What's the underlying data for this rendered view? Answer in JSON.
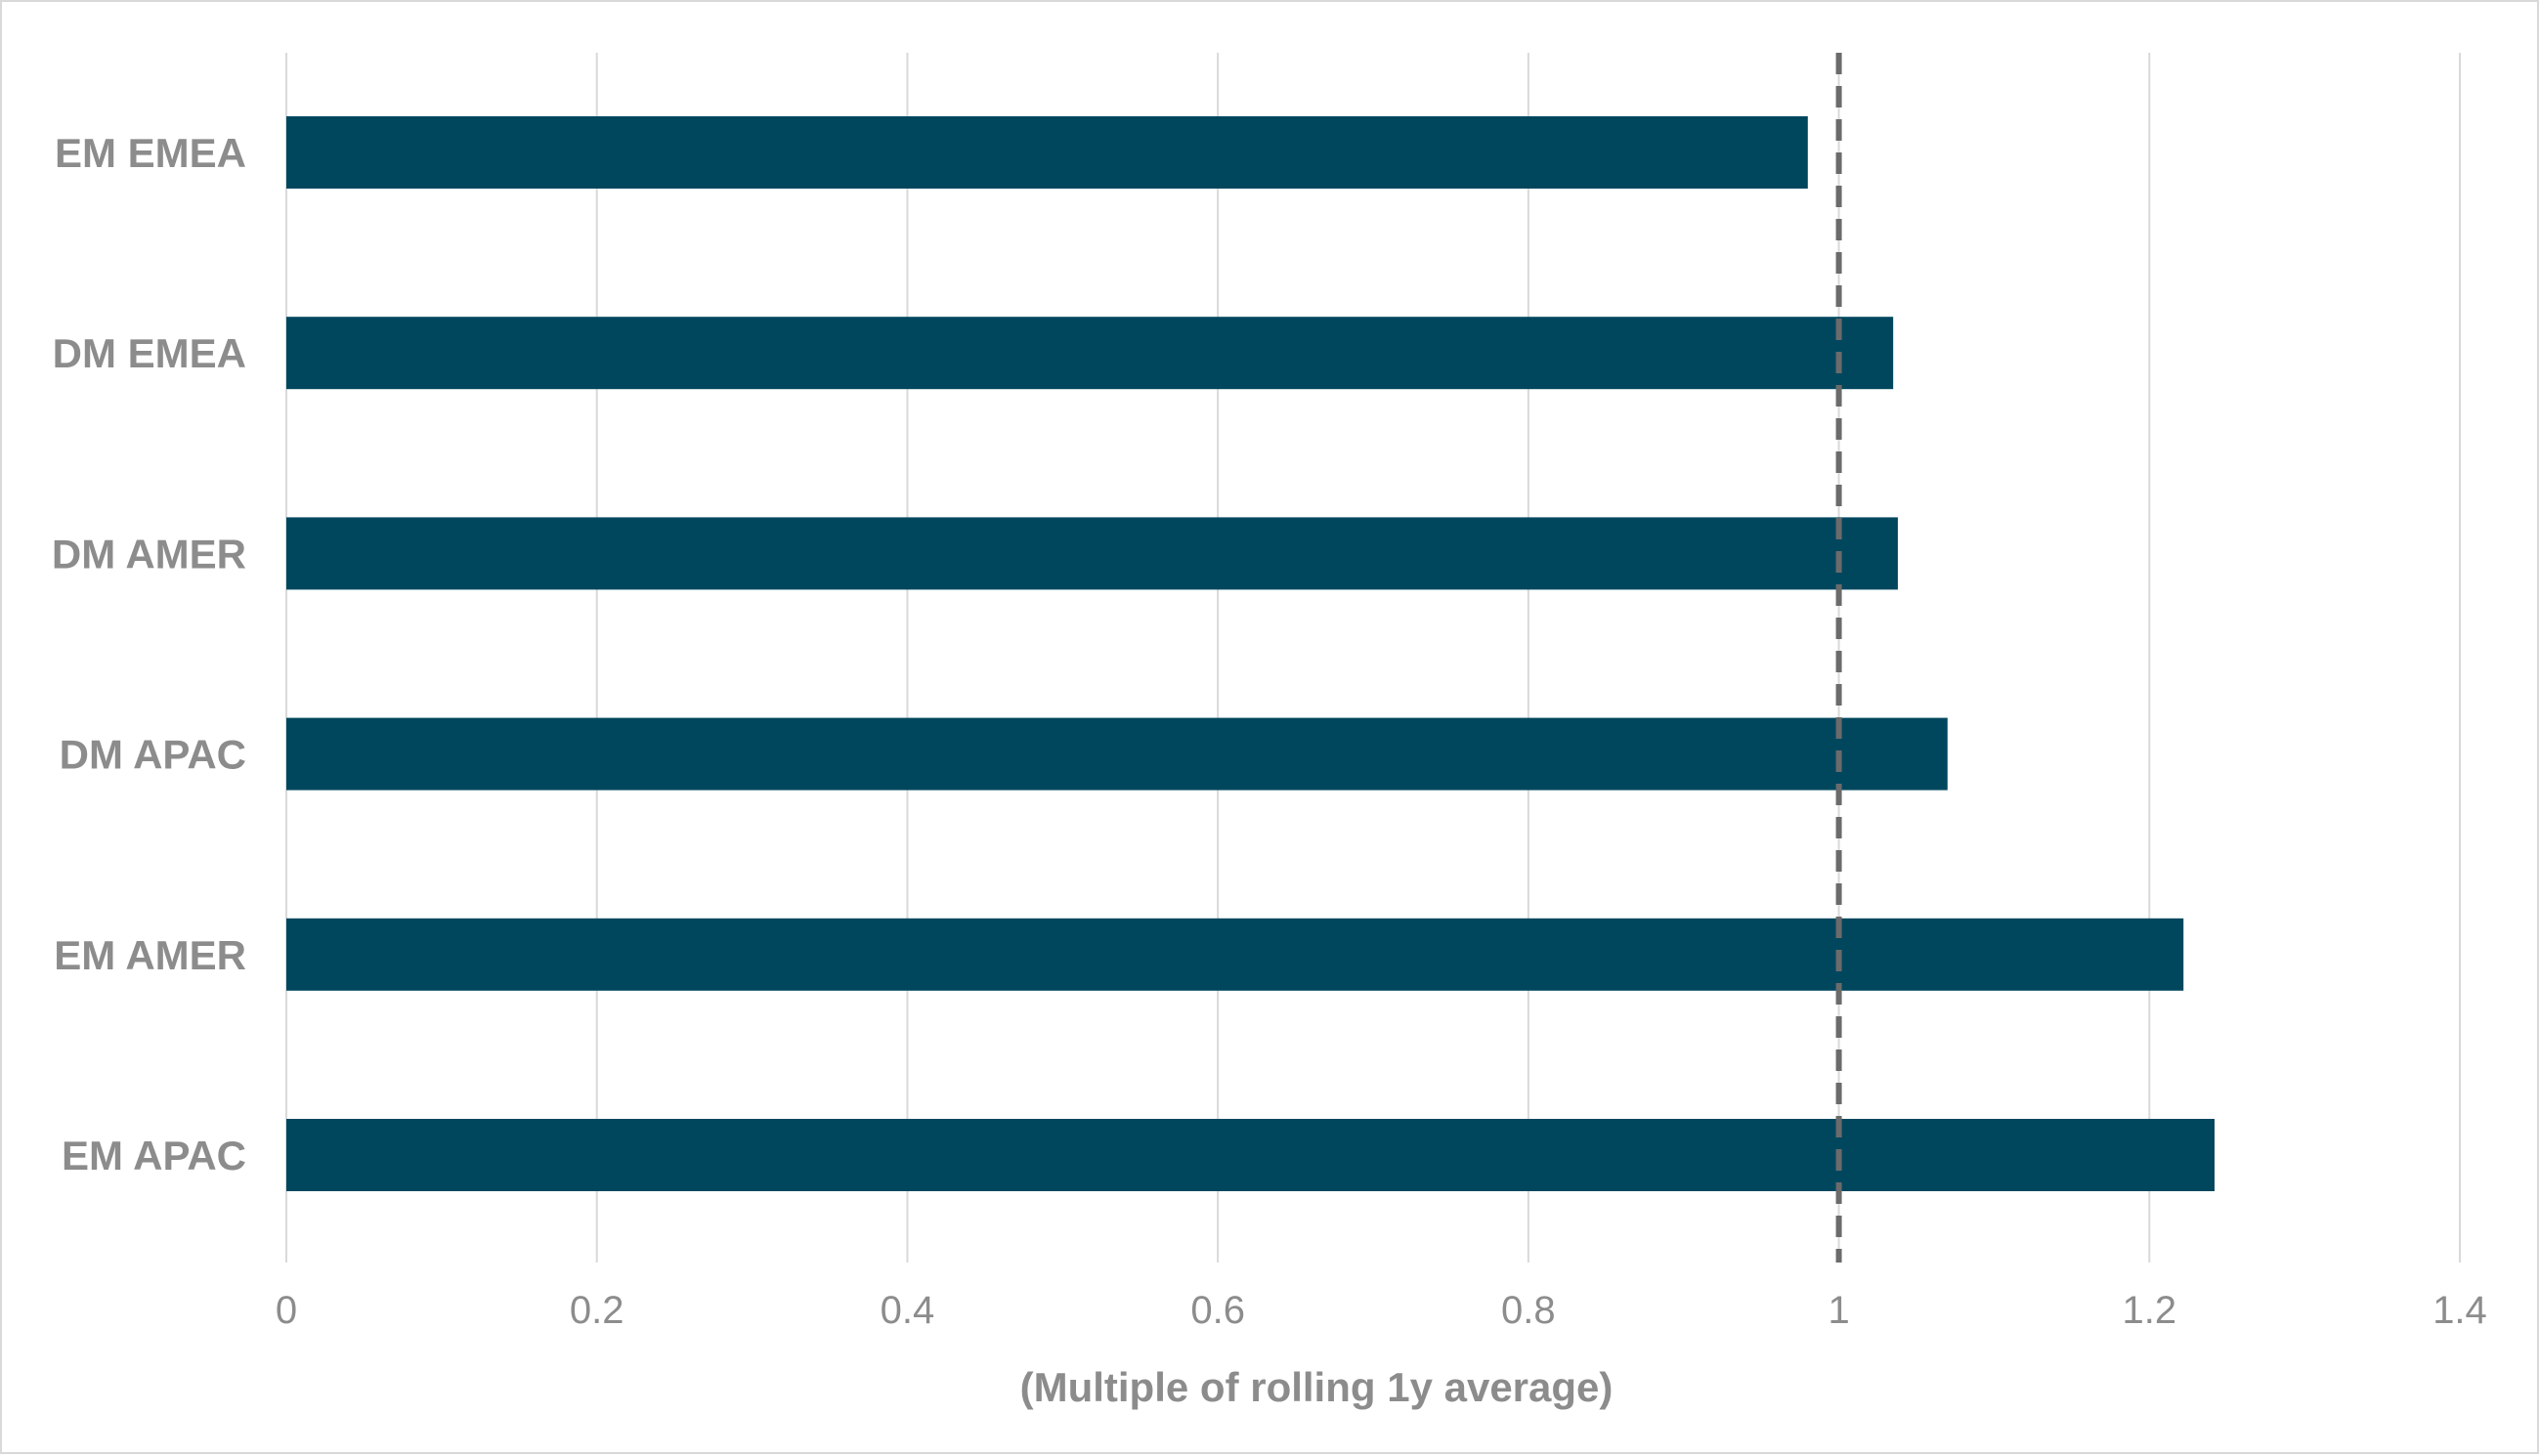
{
  "chart_data": {
    "type": "bar",
    "orientation": "horizontal",
    "categories": [
      "EM EMEA",
      "DM EMEA",
      "DM AMER",
      "DM APAC",
      "EM AMER",
      "EM APAC"
    ],
    "values": [
      0.98,
      1.035,
      1.038,
      1.07,
      1.222,
      1.242
    ],
    "xlabel": "(Multiple of rolling 1y average)",
    "ylabel": "",
    "xlim": [
      0,
      1.4
    ],
    "xticks": [
      "0",
      "0.2",
      "0.4",
      "0.6",
      "0.8",
      "1",
      "1.2",
      "1.4"
    ],
    "xtick_values": [
      0,
      0.2,
      0.4,
      0.6,
      0.8,
      1,
      1.2,
      1.4
    ],
    "reference_line": {
      "x": 1,
      "style": "dashed"
    },
    "grid": "vertical",
    "legend": "none",
    "colors": {
      "bar": "#00475e",
      "grid": "#d9d9d9",
      "reference": "#6b6b6b",
      "text": "#8c8c8c"
    }
  }
}
